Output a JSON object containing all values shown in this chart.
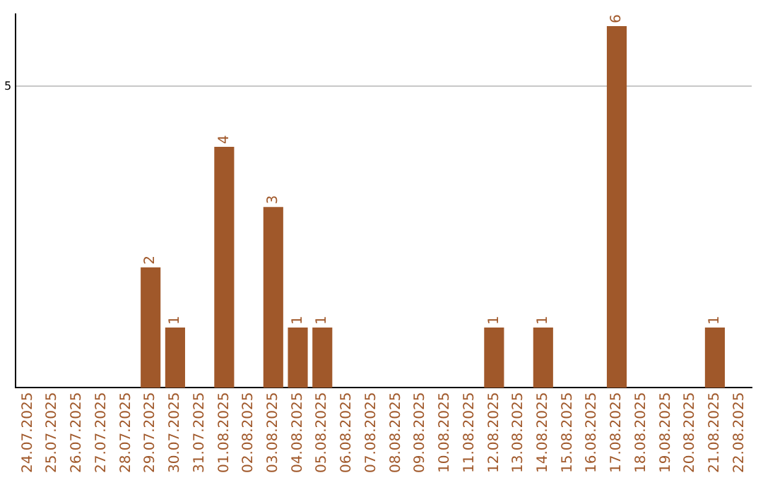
{
  "chart_data": {
    "type": "bar",
    "categories": [
      "24.07.2025",
      "25.07.2025",
      "26.07.2025",
      "27.07.2025",
      "28.07.2025",
      "29.07.2025",
      "30.07.2025",
      "31.07.2025",
      "01.08.2025",
      "02.08.2025",
      "03.08.2025",
      "04.08.2025",
      "05.08.2025",
      "06.08.2025",
      "07.08.2025",
      "08.08.2025",
      "09.08.2025",
      "10.08.2025",
      "11.08.2025",
      "12.08.2025",
      "13.08.2025",
      "14.08.2025",
      "15.08.2025",
      "16.08.2025",
      "17.08.2025",
      "18.08.2025",
      "19.08.2025",
      "20.08.2025",
      "21.08.2025",
      "22.08.2025"
    ],
    "values": [
      0,
      0,
      0,
      0,
      0,
      2,
      1,
      0,
      4,
      0,
      3,
      1,
      1,
      0,
      0,
      0,
      0,
      0,
      0,
      1,
      0,
      1,
      0,
      0,
      6,
      0,
      0,
      0,
      1,
      0
    ],
    "value_labels": [
      null,
      null,
      null,
      null,
      null,
      "2",
      "1",
      null,
      "4",
      null,
      "3",
      "1",
      "1",
      null,
      null,
      null,
      null,
      null,
      null,
      "1",
      null,
      "1",
      null,
      null,
      "6",
      null,
      null,
      null,
      "1",
      null
    ],
    "color": "#a0582a",
    "ylim": [
      0,
      6.2
    ],
    "yticks": [
      5
    ],
    "grid": "y",
    "legend": false
  }
}
